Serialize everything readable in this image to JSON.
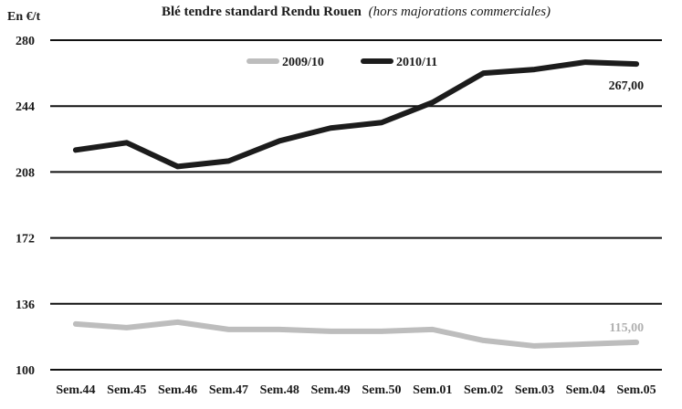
{
  "chart_data": {
    "type": "line",
    "title": "Blé tendre standard Rendu Rouen",
    "subtitle": "(hors majorations commerciales)",
    "ylabel": "En €/t",
    "xlabel": "",
    "ylim": [
      100,
      280
    ],
    "yticks": [
      100,
      136,
      172,
      208,
      244,
      280
    ],
    "grid": "horizontal",
    "legend_position": "top-center",
    "categories": [
      "Sem.44",
      "Sem.45",
      "Sem.46",
      "Sem.47",
      "Sem.48",
      "Sem.49",
      "Sem.50",
      "Sem.01",
      "Sem.02",
      "Sem.03",
      "Sem.04",
      "Sem.05"
    ],
    "series": [
      {
        "name": "2009/10",
        "color": "#bdbdbd",
        "values": [
          125,
          123,
          126,
          122,
          122,
          121,
          121,
          122,
          116,
          113,
          114,
          115
        ],
        "end_label": "115,00"
      },
      {
        "name": "2010/11",
        "color": "#1c1c1c",
        "values": [
          220,
          224,
          211,
          214,
          225,
          232,
          235,
          246,
          262,
          264,
          268,
          267
        ],
        "end_label": "267,00"
      }
    ]
  }
}
